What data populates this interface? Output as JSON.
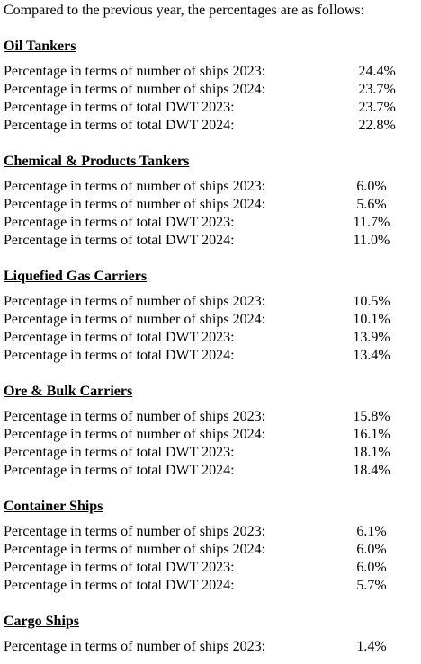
{
  "intro": "Compared to the previous year, the percentages are as follows:",
  "sections": [
    {
      "title": "Oil Tankers",
      "rows": [
        [
          "Percentage in terms of number of ships 2023:",
          "24.4%"
        ],
        [
          "Percentage in terms of number of ships 2024:",
          "23.7%"
        ],
        [
          "Percentage in terms of total DWT 2023:",
          "23.7%"
        ],
        [
          "Percentage in terms of total DWT 2024:",
          "22.8%"
        ]
      ]
    },
    {
      "title": "Chemical & Products Tankers",
      "rows": [
        [
          "Percentage in terms of number of ships 2023:",
          "6.0%"
        ],
        [
          "Percentage in terms of number of ships 2024:",
          "5.6%"
        ],
        [
          "Percentage in terms of total DWT 2023:",
          "11.7%"
        ],
        [
          "Percentage in terms of total DWT 2024:",
          "11.0%"
        ]
      ]
    },
    {
      "title": "Liquefied Gas Carriers",
      "rows": [
        [
          "Percentage in terms of number of ships 2023:",
          "10.5%"
        ],
        [
          "Percentage in terms of number of ships 2024:",
          "10.1%"
        ],
        [
          "Percentage in terms of total DWT 2023:",
          "13.9%"
        ],
        [
          "Percentage in terms of total DWT 2024:",
          "13.4%"
        ]
      ]
    },
    {
      "title": "Ore & Bulk Carriers",
      "rows": [
        [
          "Percentage in terms of number of ships 2023:",
          "15.8%"
        ],
        [
          "Percentage in terms of number of ships 2024:",
          "16.1%"
        ],
        [
          "Percentage in terms of total DWT 2023:",
          "18.1%"
        ],
        [
          "Percentage in terms of total DWT 2024:",
          "18.4%"
        ]
      ]
    },
    {
      "title": "Container Ships",
      "rows": [
        [
          "Percentage in terms of number of ships 2023:",
          "6.1%"
        ],
        [
          "Percentage in terms of number of ships 2024:",
          "6.0%"
        ],
        [
          "Percentage in terms of total DWT 2023:",
          "6.0%"
        ],
        [
          "Percentage in terms of total DWT 2024:",
          "5.7%"
        ]
      ]
    },
    {
      "title": "Cargo Ships",
      "rows": [
        [
          "Percentage in terms of number of ships 2023:",
          "1.4%"
        ]
      ]
    }
  ]
}
